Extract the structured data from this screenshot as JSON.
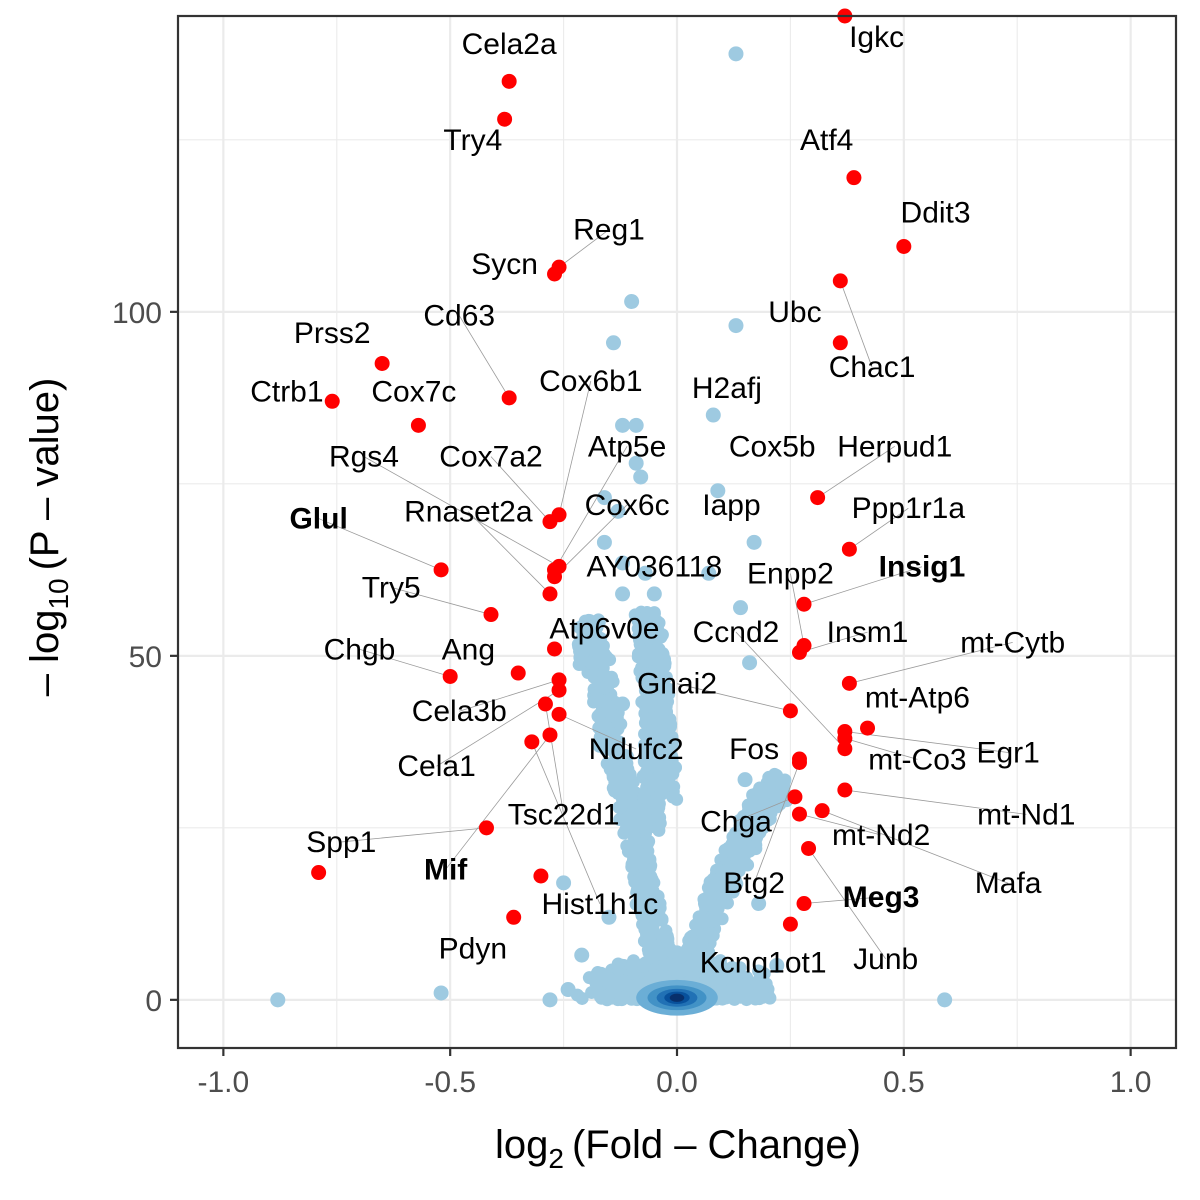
{
  "chart_data": {
    "type": "scatter",
    "title": "",
    "xlabel": {
      "main": "log",
      "sub": "2",
      "rest": "(Fold – Change)"
    },
    "ylabel": {
      "pre": "– log",
      "sub": "10",
      "rest": "(P – value)"
    },
    "xlim": [
      -1.1,
      1.1
    ],
    "ylim": [
      -7,
      143
    ],
    "x_ticks": [
      {
        "value": -1.0,
        "label": "-1.0"
      },
      {
        "value": -0.5,
        "label": "-0.5"
      },
      {
        "value": 0.0,
        "label": "0.0"
      },
      {
        "value": 0.5,
        "label": "0.5"
      },
      {
        "value": 1.0,
        "label": "1.0"
      }
    ],
    "y_ticks": [
      {
        "value": 0,
        "label": "0"
      },
      {
        "value": 50,
        "label": "50"
      },
      {
        "value": 100,
        "label": "100"
      }
    ],
    "grid": true,
    "colors": {
      "significant": "#ff0000",
      "background": "#9ecae1",
      "density_core": "#08306b",
      "density_mid": "#2171b5",
      "grid": "#ebebeb",
      "panel_border": "#333333"
    },
    "significant_points": [
      {
        "gene": "Igkc",
        "x": 0.37,
        "y": 143.0,
        "bold": false
      },
      {
        "gene": "Cela2a",
        "x": -0.37,
        "y": 133.5,
        "bold": false
      },
      {
        "gene": "Try4",
        "x": -0.38,
        "y": 128.0,
        "bold": false
      },
      {
        "gene": "Atf4",
        "x": 0.39,
        "y": 119.5,
        "bold": false
      },
      {
        "gene": "Ddit3",
        "x": 0.5,
        "y": 109.5,
        "bold": false
      },
      {
        "gene": "Reg1",
        "x": -0.26,
        "y": 106.5,
        "bold": false
      },
      {
        "gene": "Sycn",
        "x": -0.27,
        "y": 105.5,
        "bold": false
      },
      {
        "gene": "Chac1",
        "x": 0.36,
        "y": 104.5,
        "bold": false
      },
      {
        "gene": "Ubc",
        "x": 0.36,
        "y": 95.5,
        "bold": false
      },
      {
        "gene": "Prss2",
        "x": -0.65,
        "y": 92.5,
        "bold": false
      },
      {
        "gene": "Ctrb1",
        "x": -0.76,
        "y": 87.0,
        "bold": false
      },
      {
        "gene": "Cd63",
        "x": -0.37,
        "y": 87.5,
        "bold": false
      },
      {
        "gene": "Cox7c",
        "x": -0.57,
        "y": 83.5,
        "bold": false
      },
      {
        "gene": "Herpud1",
        "x": 0.31,
        "y": 73.0,
        "bold": false
      },
      {
        "gene": "Cox6b1",
        "x": -0.26,
        "y": 70.5,
        "bold": false
      },
      {
        "gene": "Cox7a2",
        "x": -0.28,
        "y": 69.5,
        "bold": false
      },
      {
        "gene": "Ppp1r1a",
        "x": 0.38,
        "y": 65.5,
        "bold": false
      },
      {
        "gene": "Rgs4",
        "x": -0.26,
        "y": 63.0,
        "bold": false
      },
      {
        "gene": "Atp5e",
        "x": -0.27,
        "y": 62.5,
        "bold": false
      },
      {
        "gene": "Glul",
        "x": -0.52,
        "y": 62.5,
        "bold": true
      },
      {
        "gene": "Cox6c",
        "x": -0.27,
        "y": 61.5,
        "bold": false
      },
      {
        "gene": "Rnaset2a",
        "x": -0.28,
        "y": 59.0,
        "bold": false
      },
      {
        "gene": "Insig1",
        "x": 0.28,
        "y": 57.5,
        "bold": true
      },
      {
        "gene": "Try5",
        "x": -0.41,
        "y": 56.0,
        "bold": false
      },
      {
        "gene": "Enpp2",
        "x": 0.28,
        "y": 51.5,
        "bold": false
      },
      {
        "gene": "Atp6v0e",
        "x": -0.27,
        "y": 51.0,
        "bold": false
      },
      {
        "gene": "Insm1",
        "x": 0.27,
        "y": 50.5,
        "bold": false
      },
      {
        "gene": "Ang",
        "x": -0.35,
        "y": 47.5,
        "bold": false
      },
      {
        "gene": "Chgb",
        "x": -0.5,
        "y": 47.0,
        "bold": false
      },
      {
        "gene": "mt-Cytb",
        "x": 0.38,
        "y": 46.0,
        "bold": false
      },
      {
        "gene": "Cela3b",
        "x": -0.26,
        "y": 46.5,
        "bold": false
      },
      {
        "gene": "Cela1",
        "x": -0.26,
        "y": 45.0,
        "bold": false
      },
      {
        "gene": "Gnai2",
        "x": 0.25,
        "y": 42.0,
        "bold": false
      },
      {
        "gene": "Ndufc2",
        "x": -0.26,
        "y": 41.5,
        "bold": false
      },
      {
        "gene": "Tsc22d1",
        "x": -0.29,
        "y": 43.0,
        "bold": false
      },
      {
        "gene": "Hist1h1c",
        "x": -0.32,
        "y": 37.5,
        "bold": false
      },
      {
        "gene": "Mif",
        "x": -0.28,
        "y": 38.5,
        "bold": true
      },
      {
        "gene": "mt-Atp6",
        "x": 0.42,
        "y": 39.5,
        "bold": false
      },
      {
        "gene": "Egr1",
        "x": 0.37,
        "y": 39.0,
        "bold": false
      },
      {
        "gene": "mt-Co3",
        "x": 0.37,
        "y": 38.0,
        "bold": false
      },
      {
        "gene": "Ccnd2",
        "x": 0.37,
        "y": 36.5,
        "bold": false
      },
      {
        "gene": "Fos",
        "x": 0.27,
        "y": 35.0,
        "bold": false
      },
      {
        "gene": "Btg2",
        "x": 0.27,
        "y": 34.5,
        "bold": false
      },
      {
        "gene": "mt-Nd1",
        "x": 0.37,
        "y": 30.5,
        "bold": false
      },
      {
        "gene": "Chga",
        "x": 0.26,
        "y": 29.5,
        "bold": false
      },
      {
        "gene": "Mafa",
        "x": 0.32,
        "y": 27.5,
        "bold": false
      },
      {
        "gene": "mt-Nd2",
        "x": 0.27,
        "y": 27.0,
        "bold": false
      },
      {
        "gene": "Junb",
        "x": 0.29,
        "y": 22.0,
        "bold": false
      },
      {
        "gene": "Spp1",
        "x": -0.42,
        "y": 25.0,
        "bold": false
      },
      {
        "gene": "Meg3",
        "x": 0.28,
        "y": 14.0,
        "bold": true
      },
      {
        "gene": "Kcnq1ot1",
        "x": 0.25,
        "y": 11.0,
        "bold": false
      },
      {
        "gene": "Pdyn",
        "x": -0.36,
        "y": 12.0,
        "bold": false
      },
      {
        "gene": "IappDot",
        "x": -0.3,
        "y": 18.0,
        "bold": false,
        "label_hidden": true
      },
      {
        "gene": "Spp1Dot",
        "x": -0.79,
        "y": 18.5,
        "bold": false,
        "label_hidden": true
      }
    ],
    "labels_text": [
      "Igkc",
      "Cela2a",
      "Try4",
      "Atf4",
      "Ddit3",
      "Reg1",
      "Sycn",
      "Ubc",
      "Chac1",
      "Prss2",
      "Cd63",
      "Ctrb1",
      "Cox7c",
      "Cox6b1",
      "H2afj",
      "Rgs4",
      "Cox7a2",
      "Atp5e",
      "Cox5b",
      "Herpud1",
      "Glul",
      "Rnaset2a",
      "Cox6c",
      "Iapp",
      "Ppp1r1a",
      "AY036118",
      "Insig1",
      "Try5",
      "Enpp2",
      "Atp6v0e",
      "Ccnd2",
      "Insm1",
      "Chgb",
      "Ang",
      "mt-Cytb",
      "Gnai2",
      "mt-Atp6",
      "Cela3b",
      "Ndufc2",
      "Fos",
      "Egr1",
      "Cela1",
      "mt-Co3",
      "Tsc22d1",
      "mt-Nd1",
      "Spp1",
      "Chga",
      "mt-Nd2",
      "Mif",
      "Mafa",
      "Btg2",
      "Meg3",
      "Hist1h1c",
      "Junb",
      "Pdyn",
      "Kcnq1ot1"
    ],
    "background_points": [
      {
        "x": 0.13,
        "y": 137.5
      },
      {
        "x": -0.1,
        "y": 101.5
      },
      {
        "x": 0.13,
        "y": 98.0
      },
      {
        "x": -0.14,
        "y": 95.5
      },
      {
        "x": 0.08,
        "y": 85.0
      },
      {
        "x": -0.12,
        "y": 83.5
      },
      {
        "x": -0.09,
        "y": 83.5
      },
      {
        "x": -0.09,
        "y": 78.0
      },
      {
        "x": -0.08,
        "y": 76.0
      },
      {
        "x": 0.09,
        "y": 74.0
      },
      {
        "x": -0.16,
        "y": 73.0
      },
      {
        "x": -0.13,
        "y": 71.0
      },
      {
        "x": -0.16,
        "y": 66.5
      },
      {
        "x": 0.17,
        "y": 66.5
      },
      {
        "x": -0.12,
        "y": 63.5
      },
      {
        "x": -0.07,
        "y": 62.0
      },
      {
        "x": 0.07,
        "y": 62.0
      },
      {
        "x": 0.14,
        "y": 57.0
      },
      {
        "x": -0.12,
        "y": 59.0
      },
      {
        "x": -0.05,
        "y": 59.0
      },
      {
        "x": 0.16,
        "y": 49.0
      },
      {
        "x": -0.12,
        "y": 43.0
      },
      {
        "x": -0.17,
        "y": 37.0
      },
      {
        "x": 0.15,
        "y": 32.0
      },
      {
        "x": -0.07,
        "y": 25.5
      },
      {
        "x": 0.19,
        "y": 30.0
      },
      {
        "x": -0.25,
        "y": 17.0
      },
      {
        "x": -0.88,
        "y": 0.0
      },
      {
        "x": -0.52,
        "y": 1.0
      },
      {
        "x": -0.28,
        "y": 0.0
      },
      {
        "x": -0.24,
        "y": 1.5
      },
      {
        "x": 0.59,
        "y": 0.0
      },
      {
        "x": 0.22,
        "y": 5.0
      },
      {
        "x": -0.21,
        "y": 6.5
      },
      {
        "x": -0.15,
        "y": 12.0
      },
      {
        "x": 0.18,
        "y": 14.0
      }
    ],
    "cloud": {
      "left_arm": [
        [
          -0.02,
          2
        ],
        [
          -0.04,
          8
        ],
        [
          -0.07,
          16
        ],
        [
          -0.09,
          24
        ],
        [
          -0.12,
          32
        ],
        [
          -0.15,
          40
        ],
        [
          -0.17,
          48
        ],
        [
          -0.19,
          54
        ],
        [
          -0.2,
          50
        ]
      ],
      "right_arm": [
        [
          0.02,
          2
        ],
        [
          0.05,
          8
        ],
        [
          0.08,
          14
        ],
        [
          0.11,
          18
        ],
        [
          0.14,
          22
        ],
        [
          0.17,
          26
        ],
        [
          0.2,
          29
        ],
        [
          0.23,
          31
        ]
      ],
      "left_column": [
        [
          -0.06,
          26
        ],
        [
          -0.05,
          32
        ],
        [
          -0.05,
          40
        ],
        [
          -0.06,
          48
        ],
        [
          -0.07,
          55
        ],
        [
          -0.05,
          52
        ],
        [
          -0.04,
          44
        ],
        [
          -0.03,
          36
        ],
        [
          -0.02,
          30
        ]
      ],
      "core_center": [
        0.0,
        0.3
      ]
    },
    "label_positions": {
      "Igkc": [
        0.44,
        138.5
      ],
      "Cela2a": [
        -0.37,
        137.5
      ],
      "Try4": [
        -0.45,
        123.5
      ],
      "Atf4": [
        0.33,
        123.5
      ],
      "Ddit3": [
        0.57,
        113.0
      ],
      "Reg1": [
        -0.15,
        110.5
      ],
      "Sycn": [
        -0.38,
        105.5
      ],
      "Ubc": [
        0.26,
        98.5
      ],
      "Chac1": [
        0.43,
        90.5
      ],
      "Prss2": [
        -0.76,
        95.5
      ],
      "Cd63": [
        -0.48,
        98.0
      ],
      "Ctrb1": [
        -0.86,
        87.0
      ],
      "Cox7c": [
        -0.58,
        87.0
      ],
      "Cox6b1": [
        -0.19,
        88.5
      ],
      "H2afj": [
        0.11,
        87.5
      ],
      "Rgs4": [
        -0.69,
        77.5
      ],
      "Cox7a2": [
        -0.41,
        77.5
      ],
      "Atp5e": [
        -0.11,
        79.0
      ],
      "Cox5b": [
        0.21,
        79.0
      ],
      "Herpud1": [
        0.48,
        79.0
      ],
      "Glul": [
        -0.79,
        68.5
      ],
      "Rnaset2a": [
        -0.46,
        69.5
      ],
      "Cox6c": [
        -0.11,
        70.5
      ],
      "Iapp": [
        0.12,
        70.5
      ],
      "Ppp1r1a": [
        0.51,
        70.0
      ],
      "AY036118": [
        -0.05,
        61.5
      ],
      "Insig1": [
        0.54,
        61.5
      ],
      "Try5": [
        -0.63,
        58.5
      ],
      "Enpp2": [
        0.25,
        60.5
      ],
      "Atp6v0e": [
        -0.16,
        52.5
      ],
      "Ccnd2": [
        0.13,
        52.0
      ],
      "Insm1": [
        0.42,
        52.0
      ],
      "Chgb": [
        -0.7,
        49.5
      ],
      "Ang": [
        -0.46,
        49.5
      ],
      "mt-Cytb": [
        0.74,
        50.5
      ],
      "Gnai2": [
        0.0,
        44.5
      ],
      "mt-Atp6": [
        0.53,
        42.5
      ],
      "Cela3b": [
        -0.48,
        40.5
      ],
      "Ndufc2": [
        -0.09,
        35.0
      ],
      "Fos": [
        0.17,
        35.0
      ],
      "Egr1": [
        0.73,
        34.5
      ],
      "Cela1": [
        -0.53,
        32.5
      ],
      "mt-Co3": [
        0.53,
        33.5
      ],
      "Tsc22d1": [
        -0.25,
        25.5
      ],
      "mt-Nd1": [
        0.77,
        25.5
      ],
      "Spp1": [
        -0.74,
        21.5
      ],
      "Chga": [
        0.13,
        24.5
      ],
      "mt-Nd2": [
        0.45,
        22.5
      ],
      "Mif": [
        -0.51,
        17.5
      ],
      "Mafa": [
        0.73,
        15.5
      ],
      "Btg2": [
        0.17,
        15.5
      ],
      "Meg3": [
        0.45,
        13.5
      ],
      "Hist1h1c": [
        -0.17,
        12.5
      ],
      "Junb": [
        0.46,
        4.5
      ],
      "Pdyn": [
        -0.45,
        6.0
      ],
      "Kcnq1ot1": [
        0.19,
        4.0
      ]
    }
  }
}
